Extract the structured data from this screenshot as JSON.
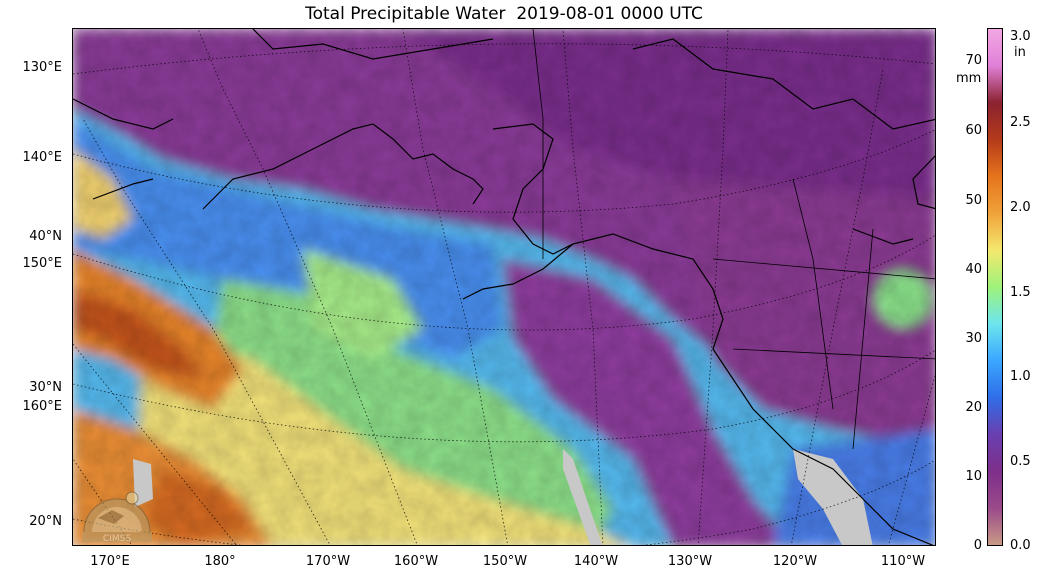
{
  "title": "Total Precipitable Water  2019-08-01 0000 UTC",
  "left_labels": [
    "130°E",
    "140°E",
    "40°N",
    "150°E",
    "30°N",
    "160°E",
    "20°N"
  ],
  "bottom_labels": [
    "170°E",
    "180°",
    "170°W",
    "160°W",
    "150°W",
    "140°W",
    "130°W",
    "120°W",
    "110°W"
  ],
  "colorbar": {
    "mm_label": "mm",
    "in_label": "in",
    "mm_ticks": [
      "70",
      "60",
      "50",
      "40",
      "30",
      "20",
      "10",
      "0"
    ],
    "in_ticks": [
      "3.0",
      "2.5",
      "2.0",
      "1.5",
      "1.0",
      "0.5",
      "0.0"
    ],
    "range_mm": [
      0,
      75
    ],
    "colors": [
      "#c99a86",
      "#9a4a8a",
      "#7e2f8a",
      "#6a3fb0",
      "#2f6ee8",
      "#3aa6ff",
      "#6ee6ee",
      "#9ef27a",
      "#f4e86e",
      "#f0a23a",
      "#e5741c",
      "#b43a1a",
      "#8a2230",
      "#e080d8",
      "#f2a7e2"
    ]
  },
  "logo_text": "CIMSS"
}
